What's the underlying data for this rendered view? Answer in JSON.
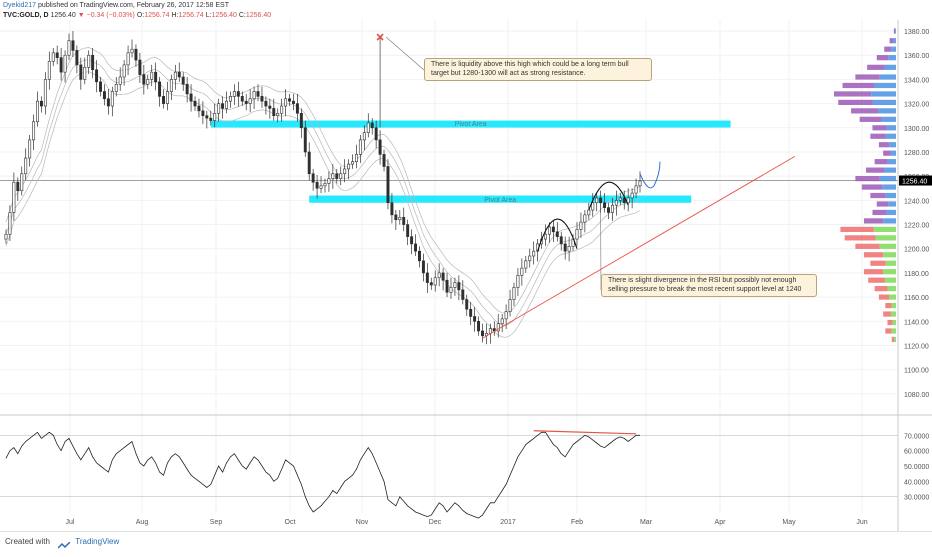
{
  "header": {
    "author": "Dyekid217",
    "published": "published on TradingView.com, February 26, 2017 12:58 EST",
    "symbol": "TVC:GOLD, D",
    "last": "1256.40",
    "change_arrow": "▼",
    "change": "−0.34 (−0.03%)",
    "o_label": "O:",
    "o": "1256.74",
    "h_label": "H:",
    "h": "1256.74",
    "l_label": "L:",
    "l": "1256.40",
    "c_label": "C:",
    "c": "1256.40"
  },
  "footer": {
    "created_with": "Created with",
    "brand": "TradingView"
  },
  "annotations": {
    "top_note": "There is liquidity above this high which could be a long term bull target but 1280-1300 will act as strong resistance.",
    "bottom_note": "There is slight divergence in the RSI but possibly not enough selling pressure to break the most recent support level at 1240",
    "pivot_upper": "Pivot Area",
    "pivot_lower": "Pivot Area"
  },
  "colors": {
    "up": "#2f2f2f",
    "down": "#2f2f2f",
    "pivot_zone": "#00e5ff",
    "trendline": "#e8544a",
    "forecast": "#3b6fd1",
    "vp_purple": "#9b59b6",
    "vp_blue": "#4a90e2",
    "vp_green": "#7ed957",
    "vp_red": "#f06d6d",
    "price_tag": "#000000"
  },
  "chart_data": [
    {
      "type": "candlestick",
      "title": "TVC:GOLD, D",
      "x_ticks": [
        "Jul",
        "Aug",
        "Sep",
        "Oct",
        "Nov",
        "Dec",
        "2017",
        "Feb",
        "Mar",
        "Apr",
        "May",
        "Jun"
      ],
      "ylim": [
        1065,
        1385
      ],
      "y_ticks": [
        1080,
        1100,
        1120,
        1140,
        1160,
        1180,
        1200,
        1220,
        1240,
        1260,
        1280,
        1300,
        1320,
        1340,
        1360,
        1380
      ],
      "y_tick_labels": [
        "1080.00",
        "1100.00",
        "1120.00",
        "1140.00",
        "1160.00",
        "1180.00",
        "1200.00",
        "1220.00",
        "1240.00",
        "1260.00",
        "1280.00",
        "1300.00",
        "1320.00",
        "1340.00",
        "1360.00",
        "1380.00"
      ],
      "last_price": 1256.4,
      "last_price_label": "1256.40",
      "closes": [
        1212,
        1230,
        1255,
        1248,
        1262,
        1275,
        1290,
        1305,
        1322,
        1318,
        1340,
        1355,
        1362,
        1358,
        1346,
        1360,
        1372,
        1364,
        1352,
        1340,
        1350,
        1360,
        1348,
        1338,
        1330,
        1324,
        1318,
        1330,
        1336,
        1342,
        1352,
        1362,
        1365,
        1356,
        1344,
        1336,
        1340,
        1346,
        1338,
        1326,
        1320,
        1330,
        1340,
        1346,
        1342,
        1336,
        1328,
        1322,
        1318,
        1314,
        1310,
        1308,
        1306,
        1312,
        1320,
        1316,
        1322,
        1326,
        1330,
        1326,
        1322,
        1320,
        1324,
        1330,
        1326,
        1322,
        1318,
        1316,
        1310,
        1312,
        1318,
        1324,
        1322,
        1320,
        1312,
        1300,
        1280,
        1262,
        1255,
        1250,
        1252,
        1254,
        1258,
        1262,
        1258,
        1262,
        1266,
        1270,
        1272,
        1278,
        1290,
        1296,
        1304,
        1300,
        1290,
        1278,
        1268,
        1238,
        1228,
        1224,
        1226,
        1220,
        1210,
        1204,
        1198,
        1190,
        1180,
        1172,
        1170,
        1176,
        1180,
        1174,
        1164,
        1168,
        1172,
        1166,
        1158,
        1150,
        1144,
        1140,
        1132,
        1128,
        1130,
        1134,
        1132,
        1138,
        1142,
        1148,
        1158,
        1168,
        1178,
        1184,
        1190,
        1194,
        1198,
        1204,
        1208,
        1212,
        1218,
        1214,
        1210,
        1204,
        1198,
        1202,
        1208,
        1216,
        1222,
        1228,
        1232,
        1238,
        1242,
        1238,
        1234,
        1230,
        1236,
        1240,
        1242,
        1238,
        1242,
        1246,
        1252,
        1256
      ],
      "volume_profile": [
        {
          "price": 1380,
          "value": 2
        },
        {
          "price": 1372,
          "value": 6
        },
        {
          "price": 1365,
          "value": 11
        },
        {
          "price": 1358,
          "value": 18
        },
        {
          "price": 1350,
          "value": 27
        },
        {
          "price": 1342,
          "value": 38
        },
        {
          "price": 1335,
          "value": 50
        },
        {
          "price": 1328,
          "value": 58
        },
        {
          "price": 1321,
          "value": 54
        },
        {
          "price": 1314,
          "value": 42
        },
        {
          "price": 1307,
          "value": 34
        },
        {
          "price": 1300,
          "value": 22
        },
        {
          "price": 1293,
          "value": 24
        },
        {
          "price": 1286,
          "value": 16
        },
        {
          "price": 1279,
          "value": 12
        },
        {
          "price": 1272,
          "value": 20
        },
        {
          "price": 1265,
          "value": 28
        },
        {
          "price": 1258,
          "value": 38
        },
        {
          "price": 1251,
          "value": 32
        },
        {
          "price": 1244,
          "value": 24
        },
        {
          "price": 1237,
          "value": 18
        },
        {
          "price": 1230,
          "value": 22
        },
        {
          "price": 1223,
          "value": 30
        },
        {
          "price": 1216,
          "value": 52
        },
        {
          "price": 1209,
          "value": 48
        },
        {
          "price": 1202,
          "value": 38
        },
        {
          "price": 1195,
          "value": 30
        },
        {
          "price": 1188,
          "value": 24
        },
        {
          "price": 1181,
          "value": 30
        },
        {
          "price": 1174,
          "value": 26
        },
        {
          "price": 1167,
          "value": 20
        },
        {
          "price": 1160,
          "value": 16
        },
        {
          "price": 1153,
          "value": 10
        },
        {
          "price": 1146,
          "value": 12
        },
        {
          "price": 1139,
          "value": 8
        },
        {
          "price": 1132,
          "value": 10
        },
        {
          "price": 1125,
          "value": 4
        }
      ],
      "pivot_zones": [
        {
          "label": "Pivot Area",
          "price_low": 1302,
          "price_high": 1306,
          "start_index": 52,
          "end_index": 184
        },
        {
          "label": "Pivot Area",
          "price_low": 1238,
          "price_high": 1244,
          "start_index": 77,
          "end_index": 174
        }
      ],
      "trendline": {
        "start": {
          "index": 121,
          "price": 1126
        },
        "end": {
          "index": 180,
          "price": 1278
        }
      },
      "swing_high_marker": {
        "index": 95,
        "price": 1375
      }
    },
    {
      "type": "line",
      "title": "RSI",
      "ylim": [
        20,
        80
      ],
      "y_ticks": [
        30,
        40,
        50,
        60,
        70
      ],
      "y_tick_labels": [
        "30.0000",
        "40.0000",
        "50.0000",
        "60.0000",
        "70.0000"
      ],
      "bands": [
        30,
        70
      ],
      "values": [
        55,
        60,
        62,
        58,
        63,
        66,
        68,
        70,
        72,
        68,
        70,
        72,
        70,
        64,
        60,
        66,
        68,
        63,
        58,
        54,
        58,
        62,
        56,
        52,
        50,
        48,
        46,
        54,
        58,
        60,
        62,
        64,
        66,
        58,
        52,
        50,
        54,
        56,
        52,
        46,
        44,
        52,
        56,
        58,
        56,
        52,
        48,
        44,
        42,
        40,
        38,
        36,
        38,
        44,
        50,
        46,
        52,
        56,
        58,
        54,
        50,
        48,
        52,
        56,
        54,
        50,
        46,
        44,
        40,
        42,
        48,
        54,
        52,
        50,
        44,
        38,
        30,
        24,
        20,
        22,
        24,
        27,
        30,
        34,
        32,
        36,
        40,
        42,
        44,
        48,
        54,
        58,
        62,
        58,
        52,
        46,
        40,
        28,
        26,
        24,
        30,
        27,
        24,
        22,
        20,
        19,
        18,
        17,
        18,
        22,
        26,
        24,
        20,
        23,
        26,
        24,
        21,
        19,
        18,
        17,
        16,
        18,
        22,
        26,
        26,
        30,
        34,
        38,
        44,
        50,
        56,
        60,
        64,
        66,
        68,
        70,
        72,
        72,
        68,
        64,
        62,
        58,
        56,
        60,
        64,
        66,
        68,
        70,
        69,
        67,
        65,
        63,
        62,
        64,
        66,
        68,
        69,
        68,
        66,
        68,
        70,
        70
      ],
      "divergence_line": {
        "start_index": 134,
        "end_index": 160,
        "value_start": 73,
        "value_end": 71
      }
    }
  ]
}
